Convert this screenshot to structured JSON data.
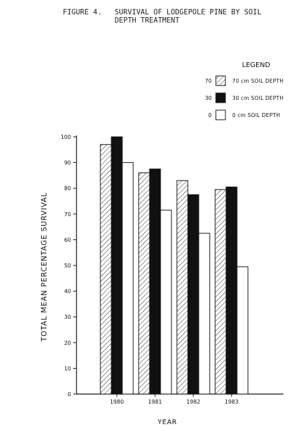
{
  "figure": {
    "title": "FIGURE 4.   SURVIVAL OF LODGEPOLE PINE BY SOIL\n            DEPTH TREATMENT"
  },
  "chart_data": {
    "type": "bar",
    "categories": [
      "1980",
      "1981",
      "1982",
      "1983"
    ],
    "series": [
      {
        "name": "70 cm SOIL DEPTH",
        "key": "70",
        "fill": "hatched",
        "values": [
          97,
          86,
          83,
          79.5
        ]
      },
      {
        "name": "30 cm SOIL DEPTH",
        "key": "30",
        "fill": "#111111",
        "values": [
          100,
          87.5,
          77.5,
          80.5
        ]
      },
      {
        "name": "0 cm SOIL DEPTH",
        "key": "0",
        "fill": "#ffffff",
        "values": [
          90,
          71.5,
          62.5,
          49.5
        ]
      }
    ],
    "title": "FIGURE 4.   SURVIVAL OF LODGEPOLE PINE BY SOIL DEPTH TREATMENT",
    "xlabel": "YEAR",
    "ylabel": "TOTAL MEAN PERCENTAGE SURVIVAL",
    "ylim": [
      0,
      100
    ],
    "yticks": [
      0,
      10,
      20,
      30,
      40,
      50,
      60,
      70,
      80,
      90,
      100
    ],
    "legend_title": "LEGEND",
    "legend_position": "top-right",
    "grid": false
  }
}
